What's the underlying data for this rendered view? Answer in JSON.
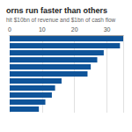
{
  "chart_data": {
    "type": "bar",
    "orientation": "horizontal",
    "title": "orns run faster than others",
    "subtitle": "hit $10bn of revenue and $1bn of cash flow",
    "categories": [
      null,
      null,
      null,
      null,
      null,
      null,
      null,
      null,
      null,
      null,
      null
    ],
    "values": [
      35,
      34,
      29,
      27,
      25,
      24,
      16,
      14,
      13,
      11,
      9
    ],
    "color": "#0f5499",
    "xlim": [
      0,
      35
    ],
    "xticks": [
      0,
      10,
      20,
      30
    ],
    "grid": true
  }
}
